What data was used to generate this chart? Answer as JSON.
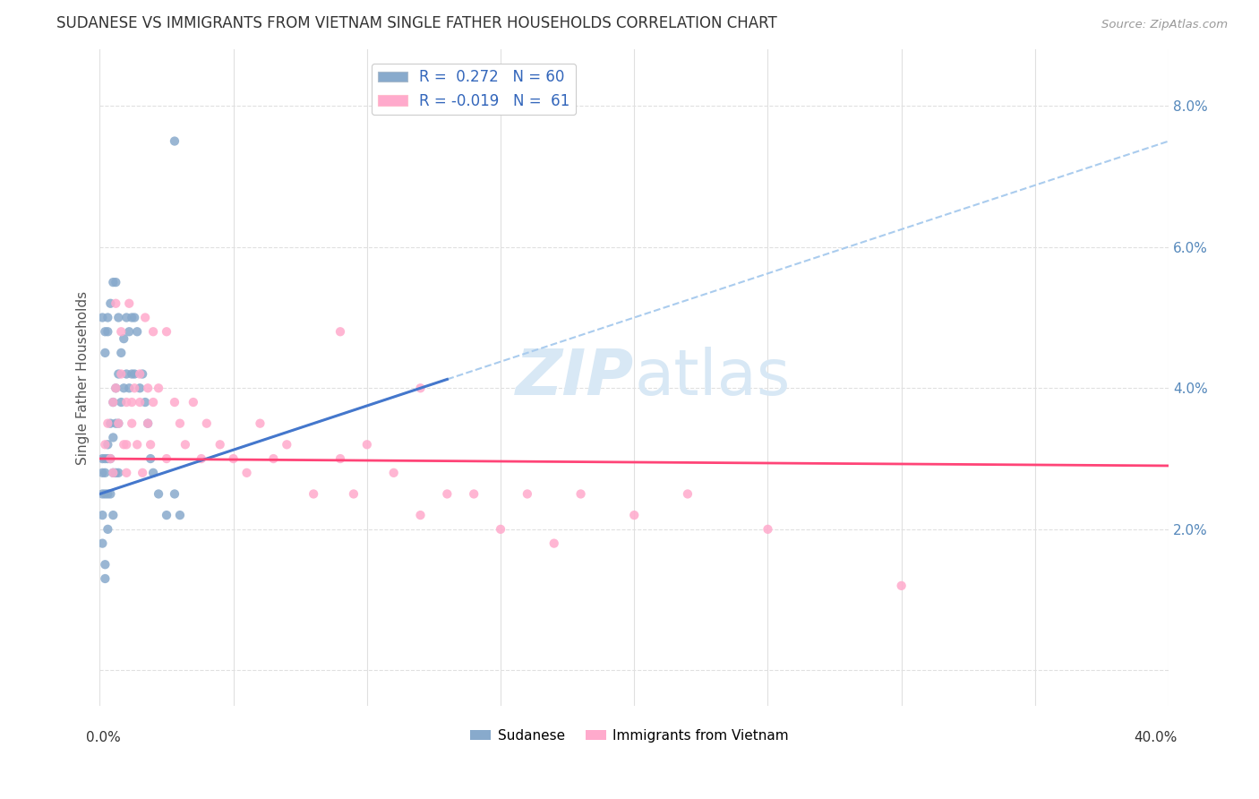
{
  "title": "SUDANESE VS IMMIGRANTS FROM VIETNAM SINGLE FATHER HOUSEHOLDS CORRELATION CHART",
  "source": "Source: ZipAtlas.com",
  "ylabel": "Single Father Households",
  "xlim": [
    0.0,
    0.4
  ],
  "ylim": [
    -0.005,
    0.088
  ],
  "yticks": [
    0.0,
    0.02,
    0.04,
    0.06,
    0.08
  ],
  "ytick_labels": [
    "",
    "2.0%",
    "4.0%",
    "6.0%",
    "8.0%"
  ],
  "blue_color": "#99BBDD",
  "pink_color": "#FFAABB",
  "blue_scatter_color": "#88AACC",
  "pink_scatter_color": "#FFAACC",
  "blue_line_color": "#4477CC",
  "pink_line_color": "#FF4477",
  "dashed_line_color": "#AACCEE",
  "watermark_color": "#D8E8F5",
  "grid_color": "#E0E0E0",
  "blue_line_start_x": 0.0,
  "blue_line_end_solid_x": 0.13,
  "blue_line_end_dashed_x": 0.4,
  "blue_line_start_y": 0.025,
  "blue_line_end_y": 0.075,
  "pink_line_start_y": 0.03,
  "pink_line_end_y": 0.029,
  "sudanese_x": [
    0.001,
    0.001,
    0.001,
    0.001,
    0.001,
    0.002,
    0.002,
    0.002,
    0.002,
    0.002,
    0.003,
    0.003,
    0.003,
    0.003,
    0.004,
    0.004,
    0.004,
    0.005,
    0.005,
    0.005,
    0.005,
    0.006,
    0.006,
    0.006,
    0.007,
    0.007,
    0.007,
    0.008,
    0.008,
    0.009,
    0.009,
    0.01,
    0.01,
    0.011,
    0.011,
    0.012,
    0.012,
    0.013,
    0.013,
    0.014,
    0.015,
    0.016,
    0.017,
    0.018,
    0.019,
    0.02,
    0.022,
    0.025,
    0.028,
    0.03,
    0.001,
    0.002,
    0.002,
    0.003,
    0.003,
    0.004,
    0.005,
    0.006,
    0.007,
    0.028
  ],
  "sudanese_y": [
    0.03,
    0.028,
    0.025,
    0.022,
    0.018,
    0.03,
    0.028,
    0.025,
    0.015,
    0.013,
    0.032,
    0.03,
    0.025,
    0.02,
    0.035,
    0.03,
    0.025,
    0.038,
    0.033,
    0.028,
    0.022,
    0.04,
    0.035,
    0.028,
    0.042,
    0.035,
    0.028,
    0.045,
    0.038,
    0.047,
    0.04,
    0.05,
    0.042,
    0.048,
    0.04,
    0.05,
    0.042,
    0.05,
    0.042,
    0.048,
    0.04,
    0.042,
    0.038,
    0.035,
    0.03,
    0.028,
    0.025,
    0.022,
    0.025,
    0.022,
    0.05,
    0.048,
    0.045,
    0.05,
    0.048,
    0.052,
    0.055,
    0.055,
    0.05,
    0.075
  ],
  "vietnam_x": [
    0.002,
    0.003,
    0.004,
    0.005,
    0.005,
    0.006,
    0.007,
    0.008,
    0.009,
    0.01,
    0.01,
    0.011,
    0.012,
    0.013,
    0.014,
    0.015,
    0.016,
    0.017,
    0.018,
    0.019,
    0.02,
    0.022,
    0.025,
    0.028,
    0.03,
    0.032,
    0.035,
    0.038,
    0.04,
    0.045,
    0.05,
    0.055,
    0.06,
    0.065,
    0.07,
    0.08,
    0.09,
    0.095,
    0.1,
    0.11,
    0.12,
    0.13,
    0.14,
    0.15,
    0.16,
    0.17,
    0.18,
    0.2,
    0.22,
    0.25,
    0.006,
    0.008,
    0.01,
    0.012,
    0.015,
    0.018,
    0.02,
    0.025,
    0.09,
    0.12,
    0.3
  ],
  "vietnam_y": [
    0.032,
    0.035,
    0.03,
    0.038,
    0.028,
    0.04,
    0.035,
    0.042,
    0.032,
    0.038,
    0.028,
    0.052,
    0.035,
    0.04,
    0.032,
    0.038,
    0.028,
    0.05,
    0.035,
    0.032,
    0.038,
    0.04,
    0.03,
    0.038,
    0.035,
    0.032,
    0.038,
    0.03,
    0.035,
    0.032,
    0.03,
    0.028,
    0.035,
    0.03,
    0.032,
    0.025,
    0.03,
    0.025,
    0.032,
    0.028,
    0.022,
    0.025,
    0.025,
    0.02,
    0.025,
    0.018,
    0.025,
    0.022,
    0.025,
    0.02,
    0.052,
    0.048,
    0.032,
    0.038,
    0.042,
    0.04,
    0.048,
    0.048,
    0.048,
    0.04,
    0.012
  ]
}
